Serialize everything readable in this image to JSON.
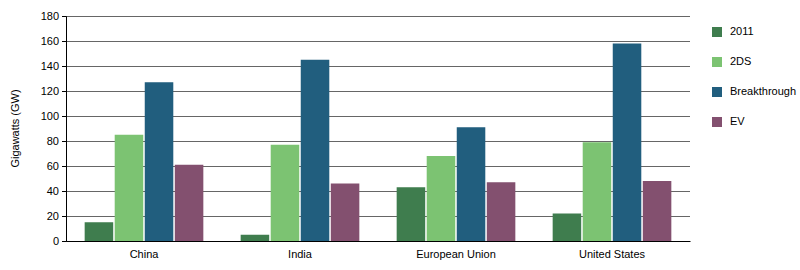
{
  "chart_data": {
    "type": "bar",
    "y_label": "Gigawatts (GW)",
    "categories": [
      "China",
      "India",
      "European Union",
      "United States"
    ],
    "series": [
      {
        "name": "2011",
        "color": "#3f7d4e",
        "values": [
          15,
          5,
          43,
          22
        ]
      },
      {
        "name": "2DS",
        "color": "#7cc372",
        "values": [
          85,
          77,
          68,
          79
        ]
      },
      {
        "name": "Breakthrough",
        "color": "#215e7e",
        "values": [
          127,
          145,
          91,
          158
        ]
      },
      {
        "name": "EV",
        "color": "#83506f",
        "values": [
          61,
          46,
          47,
          48
        ]
      }
    ],
    "ylim": [
      0,
      180
    ],
    "yticks": [
      0,
      20,
      40,
      60,
      80,
      100,
      120,
      140,
      160,
      180
    ],
    "grid": true,
    "legend": "right"
  }
}
